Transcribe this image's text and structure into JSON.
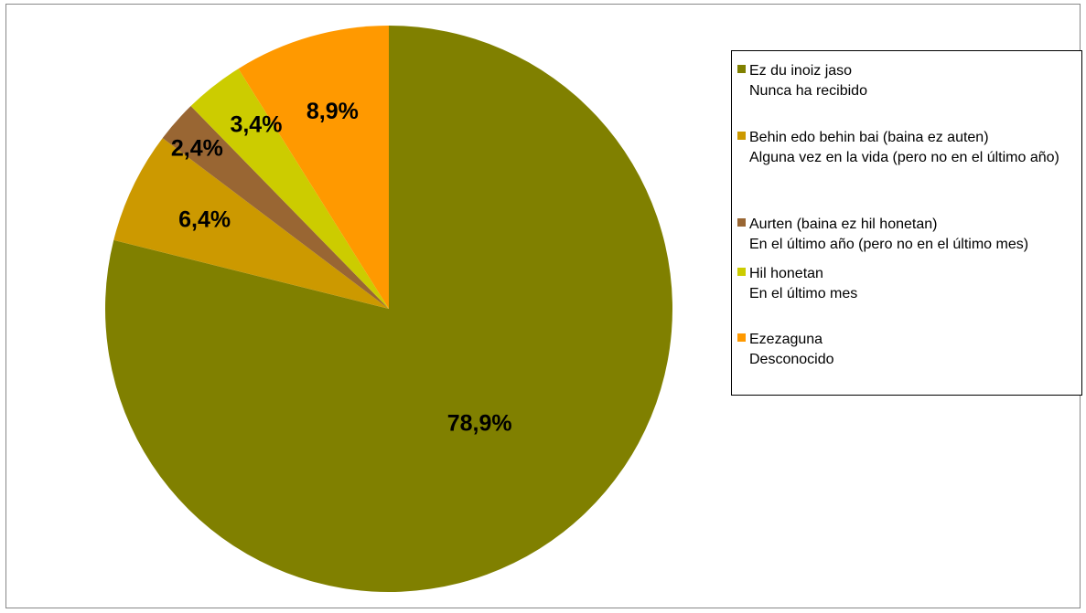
{
  "chart_data": {
    "type": "pie",
    "title": "",
    "start_angle_deg": 0,
    "direction": "clockwise",
    "slices": [
      {
        "name": "Ez du inoiz jaso",
        "name_es": "Nunca ha recibido",
        "value": 78.9,
        "label": "78,9%",
        "color": "#808000"
      },
      {
        "name": "Behin edo behin bai (baina ez auten)",
        "name_es": "Alguna vez en la vida (pero no en el último año)",
        "value": 6.4,
        "label": "6,4%",
        "color": "#CC9900"
      },
      {
        "name": "Aurten (baina ez hil honetan)",
        "name_es": "En el último año (pero no en el último mes)",
        "value": 2.4,
        "label": "2,4%",
        "color": "#996633"
      },
      {
        "name": "Hil honetan",
        "name_es": "En el último mes",
        "value": 3.4,
        "label": "3,4%",
        "color": "#CCCC00"
      },
      {
        "name": "Ezezaguna",
        "name_es": "Desconocido",
        "value": 8.9,
        "label": "8,9%",
        "color": "#FF9900"
      }
    ],
    "legend_position": "right"
  },
  "legend": {
    "items": [
      {
        "line1": "Ez du inoiz jaso",
        "line2": "Nunca ha recibido"
      },
      {
        "line1": "Behin edo behin bai (baina ez auten)",
        "line2": "Alguna vez en la vida (pero no en el último año)"
      },
      {
        "line1": "Aurten (baina ez hil honetan)",
        "line2": "En el último año (pero no en el último mes)"
      },
      {
        "line1": "Hil honetan",
        "line2": "En el último mes"
      },
      {
        "line1": "Ezezaguna",
        "line2": "Desconocido"
      }
    ]
  }
}
